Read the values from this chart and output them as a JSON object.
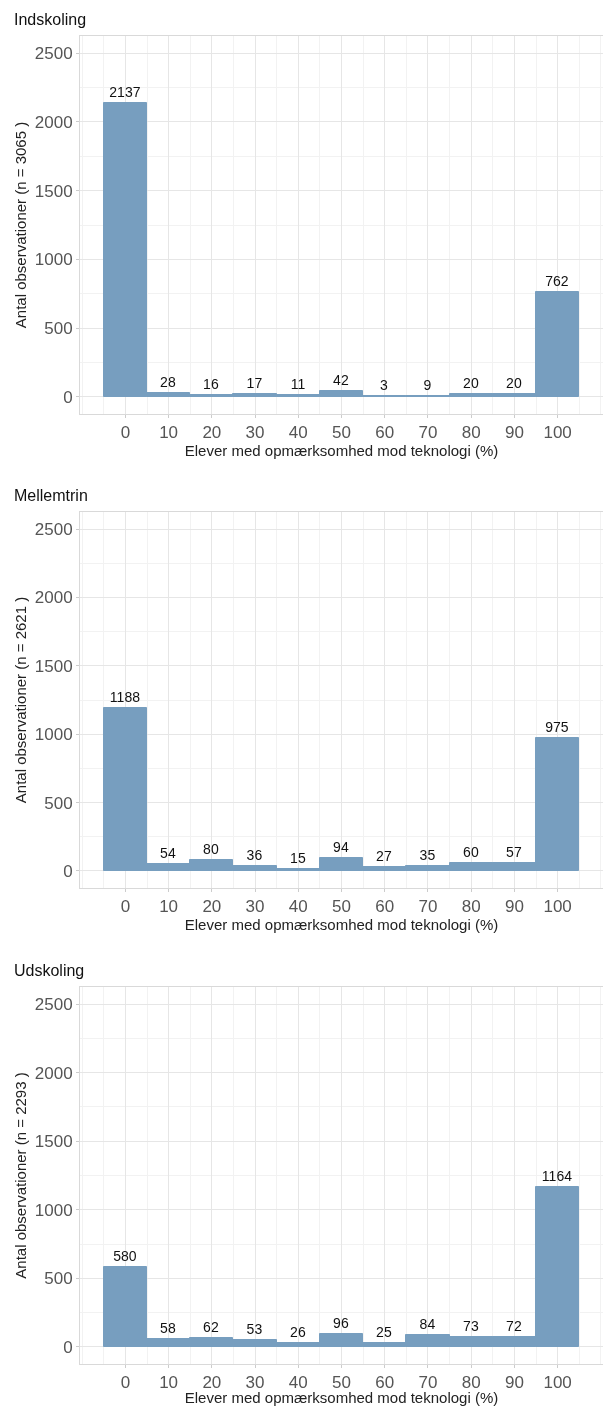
{
  "chart_data": [
    {
      "type": "histogram",
      "title": "Indskoling",
      "xlabel": "Elever med opmærksomhed mod teknologi (%)",
      "ylabel": "Antal observationer (n = 3065 )",
      "bins": [
        -5,
        5,
        15,
        25,
        35,
        45,
        55,
        65,
        75,
        85,
        95,
        105
      ],
      "values": [
        2137,
        28,
        16,
        17,
        11,
        42,
        3,
        9,
        20,
        20,
        762
      ],
      "color": "#779ebf",
      "xlim": [
        -10.5,
        110.5
      ],
      "ylim": [
        -125,
        2625
      ],
      "xticks": [
        0,
        10,
        20,
        30,
        40,
        50,
        60,
        70,
        80,
        90,
        100
      ],
      "yticks": [
        0,
        500,
        1000,
        1500,
        2000,
        2500
      ],
      "grid": true,
      "data_labels": true
    },
    {
      "type": "histogram",
      "title": "Mellemtrin",
      "xlabel": "Elever med opmærksomhed mod teknologi (%)",
      "ylabel": "Antal observationer (n = 2621 )",
      "bins": [
        -5,
        5,
        15,
        25,
        35,
        45,
        55,
        65,
        75,
        85,
        95,
        105
      ],
      "values": [
        1188,
        54,
        80,
        36,
        15,
        94,
        27,
        35,
        60,
        57,
        975
      ],
      "color": "#779ebf",
      "xlim": [
        -10.5,
        110.5
      ],
      "ylim": [
        -125,
        2625
      ],
      "xticks": [
        0,
        10,
        20,
        30,
        40,
        50,
        60,
        70,
        80,
        90,
        100
      ],
      "yticks": [
        0,
        500,
        1000,
        1500,
        2000,
        2500
      ],
      "grid": true,
      "data_labels": true
    },
    {
      "type": "histogram",
      "title": "Udskoling",
      "xlabel": "Elever med opmærksomhed mod teknologi (%)",
      "ylabel": "Antal observationer (n = 2293 )",
      "bins": [
        -5,
        5,
        15,
        25,
        35,
        45,
        55,
        65,
        75,
        85,
        95,
        105
      ],
      "values": [
        580,
        58,
        62,
        53,
        26,
        96,
        25,
        84,
        73,
        72,
        1164
      ],
      "color": "#779ebf",
      "xlim": [
        -10.5,
        110.5
      ],
      "ylim": [
        -125,
        2625
      ],
      "xticks": [
        0,
        10,
        20,
        30,
        40,
        50,
        60,
        70,
        80,
        90,
        100
      ],
      "yticks": [
        0,
        500,
        1000,
        1500,
        2000,
        2500
      ],
      "grid": true,
      "data_labels": true
    }
  ]
}
